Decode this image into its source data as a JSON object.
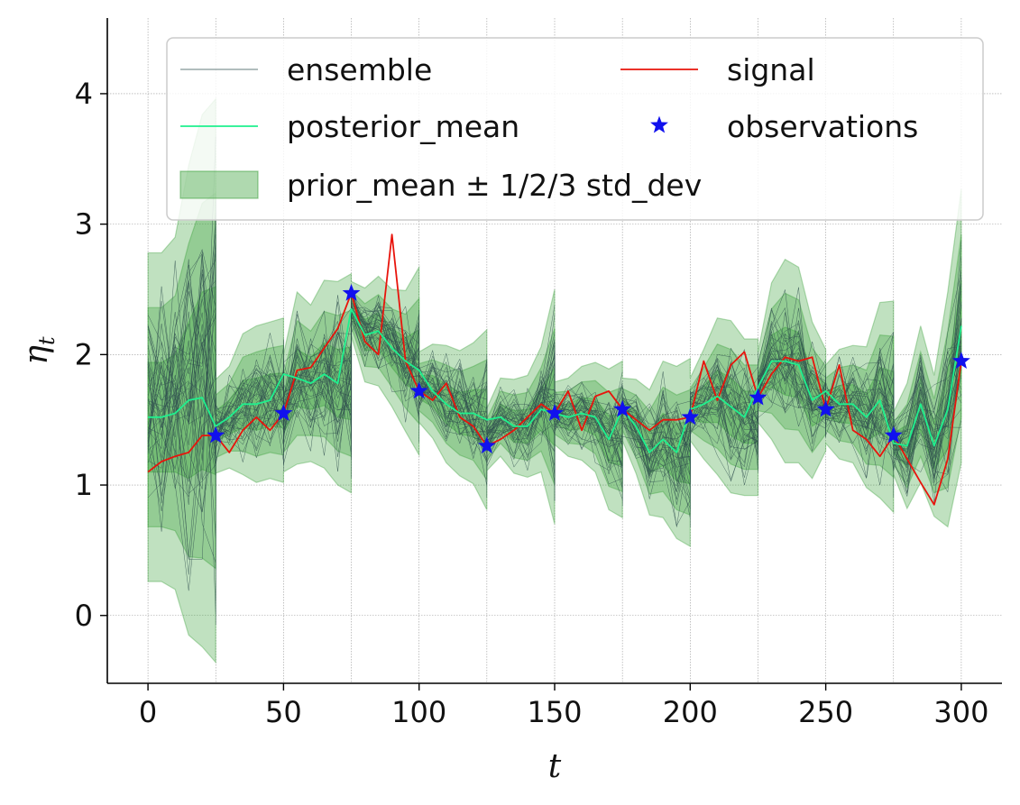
{
  "chart_data": {
    "type": "line",
    "xlabel": "t",
    "ylabel": "η",
    "ylabel_subscript": "t",
    "xlim": [
      -15,
      315
    ],
    "ylim": [
      -0.52,
      4.58
    ],
    "xticks": [
      0,
      50,
      100,
      150,
      200,
      250,
      300
    ],
    "yticks": [
      0,
      1,
      2,
      3,
      4
    ],
    "xtick_labels": [
      "0",
      "50",
      "100",
      "150",
      "200",
      "250",
      "300"
    ],
    "ytick_labels": [
      "0",
      "1",
      "2",
      "3",
      "4"
    ],
    "grid": true,
    "assimilation_times": [
      25,
      50,
      75,
      100,
      125,
      150,
      175,
      200,
      225,
      250,
      275,
      300
    ],
    "legend": {
      "placement": "top",
      "columns": 2,
      "entries": [
        {
          "key": "ensemble",
          "label": "ensemble"
        },
        {
          "key": "signal",
          "label": "signal"
        },
        {
          "key": "posterior_mean",
          "label": "posterior_mean"
        },
        {
          "key": "observations",
          "label": "observations"
        },
        {
          "key": "band",
          "label": "prior_mean ± 1/2/3 std_dev"
        }
      ]
    },
    "colors": {
      "ensemble": "#2f4f4f",
      "signal": "#e8140c",
      "posterior_mean": "#1ef08e",
      "observations": "#1111ee",
      "band": "#2e9a2e",
      "grid": "#9a9a9a"
    },
    "series": [
      {
        "name": "signal",
        "x": [
          0,
          5,
          10,
          15,
          20,
          25,
          30,
          35,
          40,
          45,
          50,
          55,
          60,
          65,
          70,
          75,
          80,
          85,
          90,
          95,
          100,
          105,
          110,
          115,
          120,
          125,
          130,
          135,
          140,
          145,
          150,
          155,
          160,
          165,
          170,
          175,
          180,
          185,
          190,
          195,
          200,
          205,
          210,
          215,
          220,
          225,
          230,
          235,
          240,
          245,
          250,
          255,
          260,
          265,
          270,
          275,
          280,
          285,
          290,
          295,
          300
        ],
        "y": [
          1.1,
          1.18,
          1.22,
          1.25,
          1.38,
          1.38,
          1.25,
          1.42,
          1.52,
          1.42,
          1.55,
          1.88,
          1.9,
          2.05,
          2.2,
          2.47,
          2.1,
          2.0,
          2.92,
          1.95,
          1.72,
          1.65,
          1.78,
          1.52,
          1.45,
          1.3,
          1.35,
          1.42,
          1.52,
          1.62,
          1.55,
          1.72,
          1.42,
          1.68,
          1.72,
          1.58,
          1.5,
          1.42,
          1.5,
          1.5,
          1.52,
          1.95,
          1.65,
          1.92,
          2.02,
          1.67,
          1.85,
          1.98,
          1.95,
          1.98,
          1.58,
          1.92,
          1.42,
          1.35,
          1.22,
          1.38,
          1.2,
          1.02,
          0.85,
          1.2,
          1.95
        ]
      },
      {
        "name": "posterior_mean",
        "x": [
          0,
          5,
          10,
          15,
          20,
          25,
          30,
          35,
          40,
          45,
          50,
          55,
          60,
          65,
          70,
          75,
          80,
          85,
          90,
          95,
          100,
          105,
          110,
          115,
          120,
          125,
          130,
          135,
          140,
          145,
          150,
          155,
          160,
          165,
          170,
          175,
          180,
          185,
          190,
          195,
          200,
          205,
          210,
          215,
          220,
          225,
          230,
          235,
          240,
          245,
          250,
          255,
          260,
          265,
          270,
          275,
          280,
          285,
          290,
          295,
          300
        ],
        "y": [
          1.52,
          1.52,
          1.55,
          1.65,
          1.67,
          1.45,
          1.52,
          1.62,
          1.62,
          1.65,
          1.85,
          1.82,
          1.78,
          1.85,
          1.78,
          2.35,
          2.15,
          2.18,
          2.05,
          1.95,
          1.88,
          1.72,
          1.62,
          1.55,
          1.55,
          1.5,
          1.52,
          1.45,
          1.45,
          1.58,
          1.55,
          1.52,
          1.55,
          1.52,
          1.35,
          1.58,
          1.45,
          1.25,
          1.35,
          1.25,
          1.58,
          1.62,
          1.68,
          1.6,
          1.52,
          1.75,
          1.95,
          1.95,
          1.92,
          1.65,
          1.72,
          1.62,
          1.62,
          1.52,
          1.65,
          1.32,
          1.3,
          1.62,
          1.3,
          1.58,
          2.22
        ]
      }
    ],
    "observations": {
      "x": [
        25,
        50,
        75,
        100,
        125,
        150,
        175,
        200,
        225,
        250,
        275,
        300
      ],
      "y": [
        1.38,
        1.55,
        2.47,
        1.72,
        1.3,
        1.55,
        1.58,
        1.52,
        1.67,
        1.58,
        1.38,
        1.95
      ]
    },
    "band": {
      "x": [
        0,
        5,
        10,
        15,
        20,
        25,
        25.01,
        30,
        35,
        40,
        45,
        50,
        50.01,
        55,
        60,
        65,
        70,
        75,
        75.01,
        80,
        85,
        90,
        95,
        100,
        100.01,
        105,
        110,
        115,
        120,
        125,
        125.01,
        130,
        135,
        140,
        145,
        150,
        150.01,
        155,
        160,
        165,
        170,
        175,
        175.01,
        180,
        185,
        190,
        195,
        200,
        200.01,
        205,
        210,
        215,
        220,
        225,
        225.01,
        230,
        235,
        240,
        245,
        250,
        250.01,
        255,
        260,
        265,
        270,
        275,
        275.01,
        280,
        285,
        290,
        295,
        300
      ],
      "mean": [
        1.52,
        1.52,
        1.55,
        1.65,
        1.8,
        1.8,
        1.45,
        1.52,
        1.62,
        1.62,
        1.65,
        1.65,
        1.55,
        1.82,
        1.78,
        1.85,
        1.78,
        1.78,
        2.35,
        2.15,
        2.18,
        2.05,
        1.95,
        1.95,
        1.75,
        1.72,
        1.62,
        1.55,
        1.55,
        1.5,
        1.35,
        1.52,
        1.45,
        1.45,
        1.58,
        1.6,
        1.55,
        1.52,
        1.55,
        1.52,
        1.35,
        1.35,
        1.58,
        1.45,
        1.25,
        1.35,
        1.25,
        1.25,
        1.58,
        1.62,
        1.68,
        1.6,
        1.52,
        1.52,
        1.75,
        1.95,
        1.95,
        1.92,
        1.65,
        1.65,
        1.62,
        1.62,
        1.62,
        1.52,
        1.65,
        1.6,
        1.32,
        1.3,
        1.62,
        1.3,
        1.58,
        2.22
      ],
      "std": [
        0.42,
        0.42,
        0.45,
        0.6,
        0.68,
        0.72,
        0.12,
        0.13,
        0.18,
        0.2,
        0.2,
        0.21,
        0.15,
        0.22,
        0.2,
        0.24,
        0.26,
        0.28,
        0.07,
        0.12,
        0.14,
        0.15,
        0.18,
        0.24,
        0.09,
        0.12,
        0.15,
        0.16,
        0.18,
        0.23,
        0.08,
        0.1,
        0.12,
        0.13,
        0.16,
        0.3,
        0.08,
        0.1,
        0.12,
        0.14,
        0.18,
        0.2,
        0.08,
        0.12,
        0.16,
        0.2,
        0.22,
        0.24,
        0.08,
        0.14,
        0.2,
        0.22,
        0.2,
        0.2,
        0.09,
        0.2,
        0.26,
        0.25,
        0.2,
        0.13,
        0.1,
        0.14,
        0.15,
        0.18,
        0.25,
        0.27,
        0.08,
        0.16,
        0.2,
        0.18,
        0.3,
        0.35
      ]
    },
    "ensemble": {
      "members": 40,
      "segment_starts": [
        0,
        25,
        50,
        75,
        100,
        125,
        150,
        175,
        200,
        225,
        250,
        275
      ]
    }
  }
}
